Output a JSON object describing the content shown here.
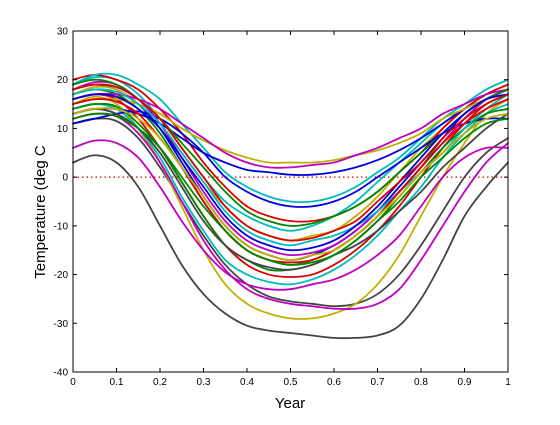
{
  "chart_data": {
    "type": "line",
    "title": "",
    "xlabel": "Year",
    "ylabel": "Temperature (deg C",
    "xlim": [
      0,
      1
    ],
    "ylim": [
      -40,
      30
    ],
    "xticks": [
      0,
      0.1,
      0.2,
      0.3,
      0.4,
      0.5,
      0.6,
      0.7,
      0.8,
      0.9,
      1
    ],
    "xtick_labels": [
      "0",
      "0.1",
      "0.2",
      "0.3",
      "0.4",
      "0.5",
      "0.6",
      "0.7",
      "0.8",
      "0.9",
      "1"
    ],
    "yticks": [
      -40,
      -30,
      -20,
      -10,
      0,
      10,
      20,
      30
    ],
    "ytick_labels": [
      "-40",
      "-30",
      "-20",
      "-10",
      "0",
      "10",
      "20",
      "30"
    ],
    "grid": false,
    "legend": "none",
    "x": [
      0,
      0.05,
      0.1,
      0.15,
      0.2,
      0.25,
      0.3,
      0.35,
      0.4,
      0.45,
      0.5,
      0.55,
      0.6,
      0.65,
      0.7,
      0.75,
      0.8,
      0.85,
      0.9,
      0.95,
      1
    ],
    "reference_line": {
      "y": 0,
      "color": "#cc0000",
      "style": "dotted"
    },
    "series": [
      {
        "color": "#444444",
        "values": [
          3,
          4.5,
          3,
          -2,
          -10,
          -18,
          -24,
          -28,
          -30.5,
          -31.5,
          -32,
          -32.5,
          -33,
          -33,
          -32.5,
          -30.5,
          -25,
          -17,
          -8,
          -2,
          3
        ]
      },
      {
        "color": "#444444",
        "values": [
          11,
          12,
          11.5,
          8,
          2,
          -5,
          -12,
          -18,
          -22,
          -24.5,
          -25.5,
          -26,
          -26.5,
          -26,
          -24,
          -20,
          -14,
          -7,
          0,
          5,
          8
        ]
      },
      {
        "color": "#c0b000",
        "values": [
          15,
          16.5,
          15,
          10,
          3,
          -6,
          -15,
          -22,
          -26,
          -28,
          -29,
          -29,
          -28,
          -26,
          -22,
          -16,
          -8,
          0,
          7,
          13,
          16
        ]
      },
      {
        "color": "#c000c0",
        "values": [
          12,
          13,
          12.5,
          9,
          3,
          -5,
          -13,
          -19,
          -23,
          -25,
          -26,
          -26.5,
          -27,
          -27,
          -26,
          -23,
          -17,
          -10,
          -3,
          3,
          7
        ]
      },
      {
        "color": "#c000c0",
        "values": [
          6,
          7.5,
          7,
          4,
          -2,
          -9,
          -15,
          -19.5,
          -22,
          -23,
          -23,
          -22,
          -21,
          -19,
          -16,
          -12,
          -6,
          0,
          4,
          6,
          6
        ]
      },
      {
        "color": "#00bbbb",
        "values": [
          14,
          15,
          14,
          10,
          4,
          -4,
          -11,
          -17,
          -20,
          -21.5,
          -22,
          -21,
          -19,
          -16,
          -12,
          -7,
          -2,
          4,
          9,
          13,
          15
        ]
      },
      {
        "color": "#dd0000",
        "values": [
          16,
          17,
          16,
          12,
          6,
          -1,
          -8,
          -14,
          -18,
          -20,
          -20.5,
          -20,
          -18,
          -15,
          -11,
          -6,
          0,
          6,
          11,
          15,
          17
        ]
      },
      {
        "color": "#008800",
        "values": [
          17,
          18,
          17,
          14,
          9,
          2,
          -5,
          -11,
          -15,
          -17,
          -18,
          -17,
          -15,
          -12,
          -8,
          -3,
          2,
          8,
          12,
          16,
          18
        ]
      },
      {
        "color": "#0000dd",
        "values": [
          18,
          19,
          18,
          15,
          10,
          3,
          -4,
          -10,
          -14,
          -16,
          -17,
          -16,
          -14,
          -11,
          -7,
          -2,
          3,
          8,
          13,
          16,
          18
        ]
      },
      {
        "color": "#00bbbb",
        "values": [
          19,
          20.5,
          20,
          17,
          12,
          6,
          0,
          -5,
          -8,
          -10,
          -11,
          -10,
          -8,
          -5,
          -1,
          3,
          7,
          11,
          14,
          17,
          19
        ]
      },
      {
        "color": "#c0b000",
        "values": [
          17,
          18.5,
          18,
          15,
          11,
          5,
          -1,
          -6,
          -10,
          -12,
          -13,
          -12,
          -11,
          -8,
          -4,
          1,
          6,
          10,
          14,
          17,
          19
        ]
      },
      {
        "color": "#dd0000",
        "values": [
          20,
          21,
          20,
          18,
          14,
          9,
          3,
          -2,
          -6,
          -8,
          -9,
          -9,
          -8,
          -6,
          -3,
          1,
          5,
          10,
          14,
          17,
          19
        ]
      },
      {
        "color": "#00bbbb",
        "values": [
          19,
          21,
          21,
          19,
          16,
          11,
          6,
          1,
          -2,
          -4,
          -5,
          -5,
          -4,
          -2,
          1,
          4,
          8,
          12,
          15,
          18,
          20
        ]
      },
      {
        "color": "#0000dd",
        "values": [
          13,
          14,
          14,
          13,
          11,
          8,
          5,
          3,
          1.5,
          1,
          0.5,
          0.5,
          1,
          2,
          3.5,
          5.5,
          8,
          11,
          14,
          16,
          18
        ]
      },
      {
        "color": "#c0b000",
        "values": [
          15,
          16,
          16,
          15,
          13,
          10,
          7.5,
          5.5,
          4,
          3,
          3,
          3,
          3.5,
          4.5,
          5.5,
          7,
          9,
          12,
          14,
          16,
          17
        ]
      },
      {
        "color": "#c000c0",
        "values": [
          16,
          17,
          17,
          16,
          14,
          11,
          8,
          5,
          3,
          2,
          2,
          2.5,
          3,
          4.5,
          6,
          8,
          10,
          13,
          15,
          17,
          18
        ]
      },
      {
        "color": "#0000dd",
        "values": [
          11,
          12,
          13,
          13.5,
          12,
          9,
          5,
          0,
          -3,
          -5,
          -6,
          -6,
          -5,
          -3,
          0,
          3,
          6,
          9,
          11,
          12,
          12
        ]
      },
      {
        "color": "#008800",
        "values": [
          14,
          15,
          14.5,
          11,
          6,
          -1,
          -8,
          -14,
          -17,
          -19,
          -19,
          -18,
          -16,
          -13,
          -9,
          -4,
          1,
          6,
          10,
          13,
          14
        ]
      },
      {
        "color": "#444444",
        "values": [
          13,
          14,
          13,
          10,
          5,
          -2,
          -9,
          -14,
          -17,
          -18.5,
          -19,
          -18,
          -16,
          -14,
          -11,
          -7,
          -3,
          2,
          6,
          10,
          13
        ]
      },
      {
        "color": "#c000c0",
        "values": [
          18,
          19.5,
          19,
          16,
          11,
          4,
          -3,
          -9,
          -13,
          -15,
          -16,
          -15.5,
          -14,
          -11,
          -7,
          -3,
          2,
          7,
          12,
          16,
          18
        ]
      },
      {
        "color": "#00bbbb",
        "values": [
          17,
          18,
          17.5,
          15,
          11,
          5,
          -1,
          -7,
          -11,
          -13,
          -14,
          -13,
          -12,
          -10,
          -7,
          -3,
          1,
          5,
          10,
          14,
          17
        ]
      },
      {
        "color": "#dd0000",
        "values": [
          15,
          16,
          15.5,
          13,
          8,
          2,
          -5,
          -11,
          -15,
          -17,
          -17.5,
          -17,
          -15,
          -12,
          -8,
          -3,
          2,
          7,
          11,
          14,
          16
        ]
      },
      {
        "color": "#008800",
        "values": [
          19,
          20,
          19,
          16,
          12,
          7,
          2,
          -3,
          -7,
          -9,
          -10,
          -9.5,
          -8,
          -6,
          -3,
          1,
          5,
          9,
          13,
          16,
          18
        ]
      },
      {
        "color": "#0000dd",
        "values": [
          16,
          17,
          16.5,
          14,
          10,
          4,
          -2,
          -8,
          -12,
          -14,
          -15,
          -14.5,
          -13,
          -10,
          -6,
          -1,
          4,
          9,
          13,
          16,
          17
        ]
      },
      {
        "color": "#c0b000",
        "values": [
          13,
          14,
          14,
          12,
          8,
          2,
          -4,
          -10,
          -14,
          -16,
          -17,
          -16,
          -15,
          -12,
          -8,
          -4,
          1,
          5,
          9,
          12,
          13
        ]
      },
      {
        "color": "#dd0000",
        "values": [
          18,
          19,
          18.5,
          16,
          12,
          6,
          0,
          -6,
          -10,
          -12,
          -13,
          -12.5,
          -11,
          -9,
          -5,
          -1,
          3,
          8,
          12,
          15,
          17
        ]
      },
      {
        "color": "#008800",
        "values": [
          12,
          13,
          12.5,
          10,
          6,
          0,
          -6,
          -11,
          -15,
          -17,
          -18,
          -17.5,
          -16,
          -13,
          -9,
          -5,
          0,
          4,
          8,
          11,
          12
        ]
      }
    ]
  }
}
